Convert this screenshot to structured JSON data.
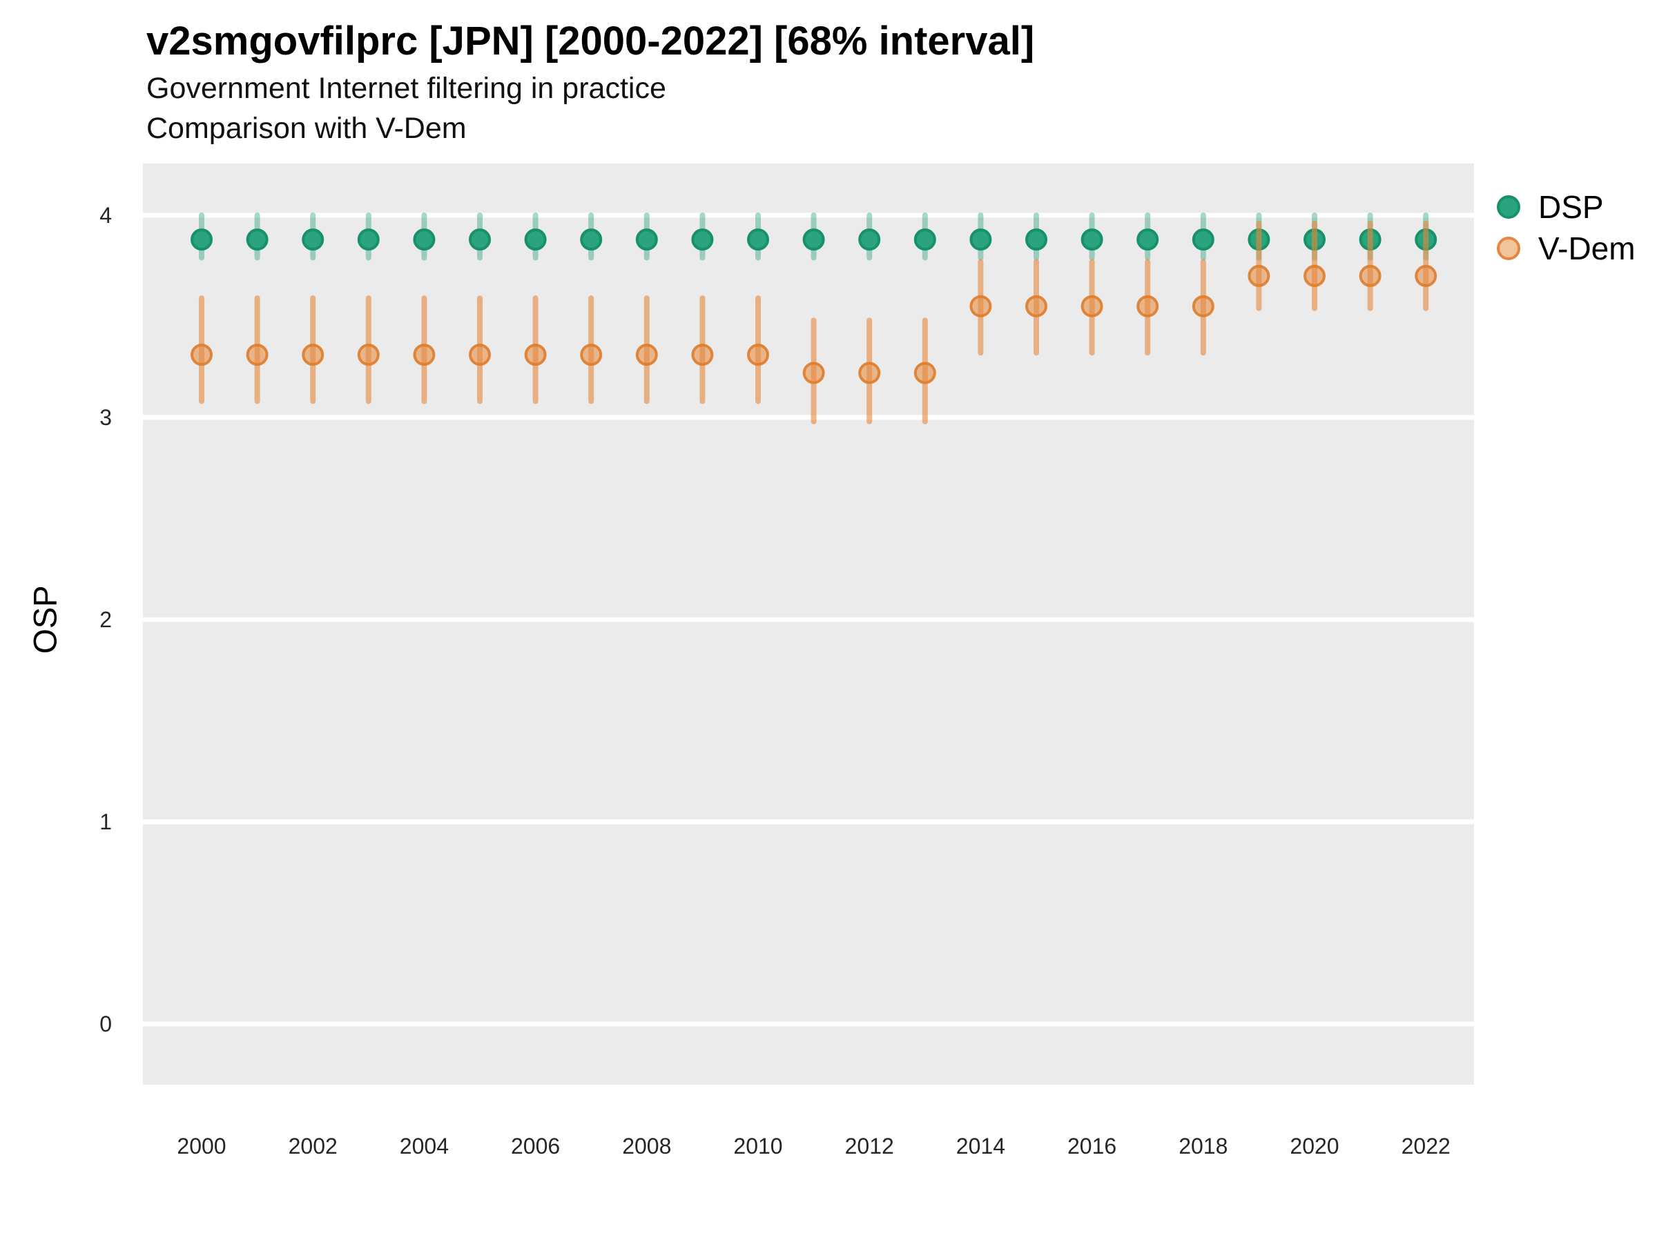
{
  "header": {
    "title": "v2smgovfilprc [JPN] [2000-2022] [68% interval]",
    "subtitle_line1": "Government Internet filtering in practice",
    "subtitle_line2": "Comparison with V-Dem"
  },
  "chart_data": {
    "type": "scatter",
    "title": "v2smgovfilprc [JPN] [2000-2022] [68% interval]",
    "subtitle1": "Government Internet filtering in practice",
    "subtitle2": "Comparison with V-Dem",
    "xlabel": "",
    "ylabel": "OSP",
    "interval": "68%",
    "ylim": [
      -0.3,
      4.26
    ],
    "xlim": [
      1999,
      2023
    ],
    "y_ticks": [
      0,
      1,
      2,
      3,
      4
    ],
    "x_ticks": [
      2000,
      2002,
      2004,
      2006,
      2008,
      2010,
      2012,
      2014,
      2016,
      2018,
      2020,
      2022
    ],
    "grid": "horizontal-major-white-on-grey",
    "panel_background": "#ebebeb",
    "gridline_color": "#ffffff",
    "legend_position": "right-top",
    "x": [
      2000,
      2001,
      2002,
      2003,
      2004,
      2005,
      2006,
      2007,
      2008,
      2009,
      2010,
      2011,
      2012,
      2013,
      2014,
      2015,
      2016,
      2017,
      2018,
      2019,
      2020,
      2021,
      2022
    ],
    "series": [
      {
        "name": "DSP",
        "color": "#2aa37e",
        "dot_fill": "#2aa37e",
        "dot_stroke": "#17916c",
        "bar_color": "rgba(42,163,126,0.42)",
        "y": [
          3.88,
          3.88,
          3.88,
          3.88,
          3.88,
          3.88,
          3.88,
          3.88,
          3.88,
          3.88,
          3.88,
          3.88,
          3.88,
          3.88,
          3.88,
          3.88,
          3.88,
          3.88,
          3.88,
          3.88,
          3.88,
          3.88,
          3.88
        ],
        "lo": [
          3.79,
          3.79,
          3.79,
          3.79,
          3.79,
          3.79,
          3.79,
          3.79,
          3.79,
          3.79,
          3.79,
          3.79,
          3.79,
          3.79,
          3.79,
          3.79,
          3.79,
          3.79,
          3.79,
          3.79,
          3.79,
          3.79,
          3.79
        ],
        "hi": [
          4.0,
          4.0,
          4.0,
          4.0,
          4.0,
          4.0,
          4.0,
          4.0,
          4.0,
          4.0,
          4.0,
          4.0,
          4.0,
          4.0,
          4.0,
          4.0,
          4.0,
          4.0,
          4.0,
          4.0,
          4.0,
          4.0,
          4.0
        ]
      },
      {
        "name": "V-Dem",
        "color": "#e5873f",
        "dot_fill": "rgba(230,136,60,0.55)",
        "dot_stroke": "rgba(222,124,43,0.9)",
        "bar_color": "rgba(230,136,60,0.6)",
        "y": [
          3.31,
          3.31,
          3.31,
          3.31,
          3.31,
          3.31,
          3.31,
          3.31,
          3.31,
          3.31,
          3.31,
          3.22,
          3.22,
          3.22,
          3.55,
          3.55,
          3.55,
          3.55,
          3.55,
          3.7,
          3.7,
          3.7,
          3.7
        ],
        "lo": [
          3.08,
          3.08,
          3.08,
          3.08,
          3.08,
          3.08,
          3.08,
          3.08,
          3.08,
          3.08,
          3.08,
          2.98,
          2.98,
          2.98,
          3.32,
          3.32,
          3.32,
          3.32,
          3.32,
          3.54,
          3.54,
          3.54,
          3.54
        ],
        "hi": [
          3.59,
          3.59,
          3.59,
          3.59,
          3.59,
          3.59,
          3.59,
          3.59,
          3.59,
          3.59,
          3.59,
          3.48,
          3.48,
          3.48,
          3.77,
          3.77,
          3.77,
          3.77,
          3.77,
          3.96,
          3.96,
          3.96,
          3.96
        ]
      }
    ]
  }
}
